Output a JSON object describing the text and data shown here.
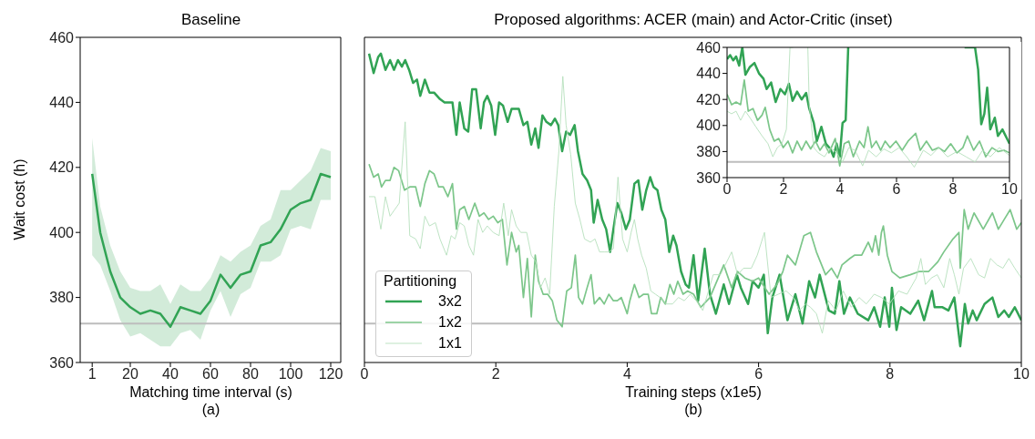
{
  "chart_data": [
    {
      "type": "line",
      "title": "Baseline",
      "xlabel": "Matching time interval (s)",
      "ylabel": "Wait cost (h)",
      "annotations": [
        "(a)"
      ],
      "marker": "none",
      "xlim": [
        -5,
        125
      ],
      "xticks": [
        1,
        20,
        40,
        60,
        80,
        100,
        120
      ],
      "ylim": [
        360,
        460
      ],
      "yticks": [
        360,
        380,
        400,
        420,
        440,
        460
      ],
      "ref_lines": [
        {
          "axis": "y",
          "value": 372,
          "color": "#bdbdbd"
        }
      ],
      "series": [
        {
          "color": "#31a354",
          "x": [
            1,
            5,
            10,
            15,
            20,
            25,
            30,
            35,
            40,
            45,
            50,
            55,
            60,
            65,
            70,
            75,
            80,
            85,
            90,
            95,
            100,
            105,
            110,
            115,
            120
          ],
          "values": [
            418,
            400,
            388,
            380,
            377,
            375,
            376,
            375,
            371,
            377,
            376,
            375,
            379,
            387,
            383,
            387,
            388,
            396,
            397,
            401,
            407,
            409,
            410,
            418,
            417
          ],
          "upper": [
            429,
            408,
            396,
            388,
            383,
            382,
            382,
            384,
            378,
            384,
            382,
            382,
            386,
            393,
            391,
            394,
            396,
            402,
            404,
            413,
            413,
            416,
            419,
            426,
            425
          ],
          "lower": [
            393,
            390,
            382,
            373,
            368,
            369,
            367,
            365,
            365,
            369,
            370,
            367,
            376,
            382,
            374,
            381,
            383,
            391,
            391,
            393,
            401,
            402,
            401,
            410,
            410
          ]
        }
      ]
    },
    {
      "type": "line",
      "title": "Proposed algorithms: ACER (main) and Actor-Critic (inset)",
      "xlabel": "Training steps (x1e5)",
      "annotations": [
        "(b)"
      ],
      "marker": "none",
      "legend": "bottom left",
      "legend_title": "Partitioning",
      "tick_labels": "x",
      "xlim": [
        0,
        10
      ],
      "xticks": [
        0,
        2,
        4,
        6,
        8,
        10
      ],
      "ylim": [
        360,
        460
      ],
      "yticks": [
        360,
        380,
        400,
        420,
        440,
        460
      ],
      "ref_lines": [
        {
          "axis": "y",
          "value": 372,
          "color": "#bdbdbd"
        }
      ],
      "series": [
        {
          "name": "3x2",
          "color": "#31a354",
          "x": [
            0.07,
            0.14,
            0.21,
            0.25,
            0.32,
            0.39,
            0.45,
            0.51,
            0.57,
            0.62,
            0.68,
            0.74,
            0.8,
            0.85,
            0.92,
            0.99,
            1.06,
            1.15,
            1.22,
            1.29,
            1.34,
            1.4,
            1.45,
            1.52,
            1.58,
            1.64,
            1.7,
            1.77,
            1.82,
            1.87,
            1.93,
            1.99,
            2.05,
            2.11,
            2.18,
            2.24,
            2.31,
            2.35,
            2.42,
            2.48,
            2.54,
            2.6,
            2.65,
            2.71,
            2.77,
            2.84,
            2.9,
            2.95,
            3.01,
            3.07,
            3.13,
            3.2,
            3.25,
            3.32,
            3.39,
            3.45,
            3.49,
            3.55,
            3.62,
            3.68,
            3.74,
            3.79,
            3.85,
            3.91,
            3.98,
            4.04,
            4.11,
            4.17,
            4.23,
            4.29,
            4.35,
            4.4,
            4.46,
            4.52,
            4.58,
            4.64,
            4.7,
            4.75,
            4.82,
            4.89,
            4.94,
            5.01,
            5.08,
            5.18,
            5.26,
            5.35,
            5.47,
            5.55,
            5.67,
            5.73,
            5.84,
            5.91,
            6.0,
            6.08,
            6.14,
            6.21,
            6.32,
            6.44,
            6.56,
            6.67,
            6.77,
            6.86,
            6.93,
            7.07,
            7.16,
            7.23,
            7.3,
            7.39,
            7.51,
            7.67,
            7.76,
            7.85,
            7.92,
            7.99,
            8.03,
            8.1,
            8.17,
            8.31,
            8.43,
            8.52,
            8.64,
            8.68,
            8.8,
            8.89,
            8.98,
            9.07,
            9.14,
            9.19,
            9.26,
            9.32,
            9.44,
            9.56,
            9.65,
            9.74,
            9.81,
            9.9,
            10
          ],
          "values": [
            455,
            449,
            454,
            455,
            450,
            453,
            450,
            453,
            451,
            453,
            450,
            446,
            447,
            442,
            447,
            443,
            443,
            441,
            440,
            440,
            440,
            430,
            440,
            432,
            431,
            444,
            444,
            432,
            440,
            442,
            439,
            430,
            440,
            439,
            434,
            438,
            438,
            438,
            433,
            434,
            427,
            432,
            426,
            436,
            434,
            433,
            435,
            433,
            425,
            431,
            430,
            433,
            425,
            418,
            416,
            413,
            403,
            410,
            404,
            401,
            394,
            401,
            409,
            406,
            401,
            404,
            415,
            416,
            407,
            413,
            417,
            414,
            413,
            407,
            404,
            394,
            399,
            396,
            388,
            384,
            383,
            393,
            379,
            395,
            381,
            375,
            384,
            378,
            387,
            383,
            378,
            385,
            383,
            387,
            369,
            380,
            387,
            373,
            381,
            372,
            385,
            380,
            387,
            376,
            375,
            385,
            375,
            380,
            375,
            373,
            377,
            371,
            380,
            371,
            383,
            370,
            377,
            375,
            379,
            373,
            382,
            377,
            377,
            376,
            380,
            365,
            378,
            372,
            376,
            373,
            378,
            380,
            374,
            376,
            374,
            377,
            373
          ]
        },
        {
          "name": "1x2",
          "color": "#7cc68a",
          "x": [
            0.07,
            0.14,
            0.21,
            0.26,
            0.32,
            0.39,
            0.45,
            0.52,
            0.61,
            0.69,
            0.78,
            0.85,
            0.92,
            0.99,
            1.06,
            1.13,
            1.2,
            1.27,
            1.34,
            1.4,
            1.45,
            1.52,
            1.59,
            1.68,
            1.75,
            1.82,
            1.89,
            1.96,
            2.03,
            2.1,
            2.17,
            2.24,
            2.31,
            2.35,
            2.42,
            2.48,
            2.54,
            2.6,
            2.65,
            2.72,
            2.79,
            2.86,
            2.93,
            3.01,
            3.08,
            3.15,
            3.21,
            3.26,
            3.32,
            3.39,
            3.45,
            3.5,
            3.58,
            3.65,
            3.72,
            3.79,
            3.85,
            3.91,
            4.0,
            4.04,
            4.11,
            4.18,
            4.25,
            4.32,
            4.37,
            4.45,
            4.51,
            4.58,
            4.65,
            4.71,
            4.77,
            4.85,
            4.92,
            5.01,
            5.12,
            5.26,
            5.47,
            5.59,
            5.68,
            5.79,
            5.91,
            6.0,
            6.16,
            6.28,
            6.37,
            6.44,
            6.56,
            6.69,
            6.79,
            6.88,
            7.02,
            7.11,
            7.2,
            7.27,
            7.39,
            7.46,
            7.57,
            7.67,
            7.73,
            7.78,
            7.83,
            7.87,
            7.9,
            7.96,
            8.03,
            8.15,
            8.31,
            8.45,
            8.59,
            8.73,
            8.82,
            8.96,
            9.05,
            9.07,
            9.13,
            9.19,
            9.28,
            9.42,
            9.56,
            9.65,
            9.74,
            9.83,
            9.93,
            10
          ],
          "values": [
            421,
            417,
            418,
            414,
            416,
            416,
            420,
            419,
            413,
            414,
            414,
            408,
            415,
            419,
            418,
            414,
            414,
            411,
            415,
            401,
            407,
            408,
            404,
            409,
            405,
            406,
            404,
            405,
            403,
            404,
            390,
            400,
            394,
            396,
            380,
            392,
            374,
            393,
            385,
            381,
            381,
            379,
            373,
            371,
            382,
            383,
            393,
            380,
            378,
            383,
            387,
            378,
            380,
            378,
            381,
            379,
            379,
            380,
            375,
            379,
            384,
            380,
            381,
            381,
            375,
            375,
            380,
            378,
            384,
            381,
            385,
            381,
            382,
            381,
            377,
            380,
            390,
            383,
            388,
            386,
            385,
            386,
            381,
            384,
            388,
            393,
            390,
            399,
            400,
            394,
            387,
            389,
            386,
            390,
            392,
            393,
            393,
            397,
            394,
            399,
            393,
            400,
            402,
            393,
            388,
            386,
            387,
            388,
            388,
            391,
            394,
            398,
            400,
            389,
            407,
            401,
            406,
            401,
            406,
            401,
            404,
            407,
            401,
            403
          ]
        },
        {
          "name": "1x1",
          "color": "#b5e0bc",
          "x": [
            0.07,
            0.16,
            0.25,
            0.32,
            0.39,
            0.46,
            0.53,
            0.62,
            0.69,
            0.78,
            0.85,
            0.92,
            0.99,
            1.08,
            1.15,
            1.25,
            1.32,
            1.38,
            1.45,
            1.52,
            1.59,
            1.66,
            1.73,
            1.8,
            1.87,
            1.96,
            2.05,
            2.12,
            2.19,
            2.24,
            2.31,
            2.38,
            2.47,
            2.54,
            2.61,
            2.68,
            2.75,
            2.82,
            2.89,
            2.96,
            3.02,
            3.07,
            3.14,
            3.21,
            3.28,
            3.35,
            3.44,
            3.51,
            3.58,
            3.65,
            3.72,
            3.79,
            3.86,
            3.93,
            4.0,
            4.06,
            4.11,
            4.16,
            4.22,
            4.29,
            4.36,
            4.43,
            4.5,
            4.59,
            4.69,
            4.78,
            4.87,
            4.96,
            5.05,
            5.15,
            5.31,
            5.42,
            5.59,
            5.68,
            5.77,
            5.89,
            5.98,
            6.09,
            6.19,
            6.3,
            6.42,
            6.53,
            6.62,
            6.72,
            6.79,
            6.88,
            6.97,
            7.06,
            7.18,
            7.29,
            7.41,
            7.53,
            7.64,
            7.76,
            7.87,
            7.99,
            8.13,
            8.26,
            8.4,
            8.47,
            8.54,
            8.63,
            8.72,
            8.82,
            8.91,
            8.98,
            9.05,
            9.12,
            9.23,
            9.35,
            9.44,
            9.53,
            9.63,
            9.72,
            9.81,
            9.9,
            10
          ],
          "values": [
            411,
            411,
            401,
            411,
            405,
            407,
            409,
            434,
            399,
            398,
            395,
            405,
            402,
            403,
            398,
            393,
            399,
            398,
            403,
            402,
            396,
            393,
            404,
            400,
            402,
            400,
            399,
            409,
            399,
            407,
            402,
            400,
            400,
            393,
            391,
            383,
            386,
            381,
            408,
            425,
            448,
            433,
            424,
            409,
            404,
            398,
            397,
            398,
            394,
            394,
            394,
            395,
            417,
            398,
            394,
            400,
            404,
            398,
            393,
            389,
            382,
            381,
            380,
            378,
            378,
            380,
            379,
            381,
            379,
            376,
            387,
            387,
            394,
            387,
            389,
            389,
            393,
            400,
            380,
            381,
            382,
            380,
            376,
            378,
            377,
            375,
            369,
            379,
            376,
            382,
            377,
            380,
            378,
            381,
            380,
            378,
            382,
            381,
            386,
            392,
            384,
            386,
            387,
            383,
            392,
            387,
            381,
            389,
            392,
            387,
            386,
            392,
            390,
            389,
            392,
            389,
            386
          ]
        }
      ]
    },
    {
      "type": "line",
      "marker": "none",
      "xlim": [
        0,
        10
      ],
      "xticks": [
        0,
        2,
        4,
        6,
        8,
        10
      ],
      "ylim": [
        360,
        460
      ],
      "yticks": [
        360,
        380,
        400,
        420,
        440,
        460
      ],
      "ref_lines": [
        {
          "axis": "y",
          "value": 372,
          "color": "#bdbdbd"
        }
      ],
      "series": [
        {
          "color": "#31a354",
          "x": [
            0,
            0.11,
            0.22,
            0.32,
            0.43,
            0.54,
            0.65,
            0.81,
            0.97,
            1.13,
            1.29,
            1.4,
            1.56,
            1.72,
            1.89,
            2.05,
            2.19,
            2.32,
            2.48,
            2.64,
            2.8,
            2.91,
            3.07,
            3.18,
            3.34,
            3.5,
            3.66,
            3.77,
            3.88,
            3.99,
            4.09,
            4.2,
            4.29,
            6,
            8.41,
            8.78,
            8.89,
            9,
            9.11,
            9.21,
            9.32,
            9.48,
            9.59,
            9.75,
            10
          ],
          "values": [
            451,
            454,
            450,
            453,
            446,
            460,
            439,
            445,
            448,
            440,
            436,
            428,
            433,
            418,
            428,
            424,
            432,
            419,
            426,
            420,
            425,
            413,
            402,
            388,
            399,
            386,
            382,
            376,
            386,
            376,
            402,
            404,
            460,
            null,
            460,
            460,
            443,
            401,
            409,
            429,
            397,
            406,
            392,
            397,
            386
          ]
        },
        {
          "color": "#7cc68a",
          "x": [
            0,
            0.16,
            0.32,
            0.48,
            0.61,
            0.75,
            0.92,
            1.08,
            1.24,
            1.35,
            1.51,
            1.67,
            1.83,
            1.99,
            2.16,
            2.32,
            2.48,
            2.64,
            2.8,
            2.96,
            3.13,
            3.29,
            3.45,
            3.61,
            3.83,
            3.99,
            4.15,
            4.31,
            4.47,
            4.69,
            4.85,
            4.99,
            5.12,
            5.28,
            5.44,
            5.6,
            5.77,
            5.98,
            6.2,
            6.41,
            6.68,
            6.84,
            7.06,
            7.27,
            7.49,
            7.7,
            7.92,
            8.14,
            8.35,
            8.51,
            8.73,
            8.94,
            9.16,
            9.38,
            9.59,
            9.81,
            10
          ],
          "values": [
            424,
            416,
            418,
            416,
            435,
            411,
            413,
            404,
            408,
            414,
            397,
            388,
            390,
            383,
            388,
            379,
            388,
            381,
            388,
            382,
            388,
            381,
            386,
            379,
            390,
            369,
            386,
            388,
            376,
            388,
            383,
            399,
            383,
            388,
            381,
            388,
            383,
            388,
            381,
            388,
            394,
            381,
            388,
            381,
            383,
            380,
            386,
            379,
            383,
            392,
            381,
            388,
            376,
            383,
            380,
            381,
            379
          ]
        },
        {
          "color": "#b5e0bc",
          "x": [
            0,
            0.16,
            0.32,
            0.48,
            0.65,
            0.81,
            1.02,
            1.24,
            1.45,
            1.62,
            1.78,
            1.94,
            2.1,
            2.23,
            2.34,
            2.5,
            2.86,
            2.91,
            3.07,
            3.23,
            3.45,
            3.66,
            3.88,
            4.09,
            4.31,
            4.53,
            4.8,
            5.01,
            5.28,
            5.55,
            5.82,
            6.09,
            6.36,
            6.63,
            6.95,
            7.22,
            7.49,
            7.81,
            8.14,
            8.46,
            8.78,
            9.05,
            9.32,
            9.64,
            10
          ],
          "values": [
            411,
            409,
            411,
            404,
            411,
            406,
            399,
            392,
            386,
            376,
            383,
            386,
            397,
            460,
            460,
            null,
            460,
            416,
            383,
            379,
            376,
            383,
            379,
            372,
            383,
            381,
            369,
            381,
            376,
            382,
            379,
            383,
            376,
            368,
            381,
            377,
            383,
            376,
            380,
            376,
            372,
            381,
            376,
            383,
            377
          ]
        }
      ]
    }
  ]
}
